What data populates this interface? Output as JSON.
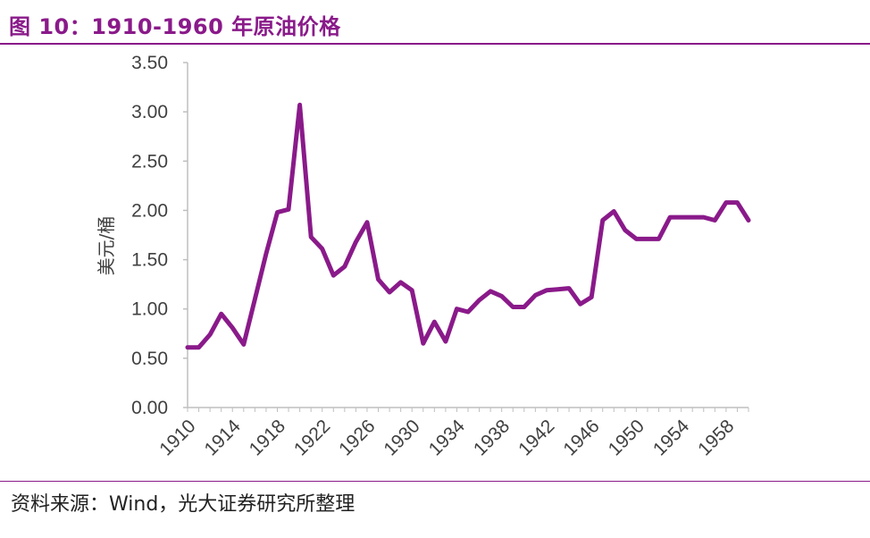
{
  "title": "图 10：1910-1960 年原油价格",
  "source": "资料来源：Wind，光大证券研究所整理",
  "colors": {
    "accent": "#8a1a8a",
    "axis": "#bfbfbf",
    "text": "#404040"
  },
  "chart_data": {
    "type": "line",
    "title": "",
    "xlabel": "",
    "ylabel": "美元/桶",
    "ylim": [
      0,
      3.5
    ],
    "xlim": [
      1910,
      1960
    ],
    "yticks": [
      "0.00",
      "0.50",
      "1.00",
      "1.50",
      "2.00",
      "2.50",
      "3.00",
      "3.50"
    ],
    "xticks": [
      "1910",
      "1914",
      "1918",
      "1922",
      "1926",
      "1930",
      "1934",
      "1938",
      "1942",
      "1946",
      "1950",
      "1954",
      "1958"
    ],
    "grid": false,
    "legend": "none",
    "series": [
      {
        "color": "#8a1a8a",
        "x": [
          1910,
          1911,
          1912,
          1913,
          1914,
          1915,
          1916,
          1917,
          1918,
          1919,
          1920,
          1921,
          1922,
          1923,
          1924,
          1925,
          1926,
          1927,
          1928,
          1929,
          1930,
          1931,
          1932,
          1933,
          1934,
          1935,
          1936,
          1937,
          1938,
          1939,
          1940,
          1941,
          1942,
          1943,
          1944,
          1945,
          1946,
          1947,
          1948,
          1949,
          1950,
          1951,
          1952,
          1953,
          1954,
          1955,
          1956,
          1957,
          1958,
          1959,
          1960
        ],
        "values": [
          0.61,
          0.61,
          0.74,
          0.95,
          0.81,
          0.64,
          1.1,
          1.56,
          1.98,
          2.01,
          3.07,
          1.73,
          1.61,
          1.34,
          1.43,
          1.68,
          1.88,
          1.3,
          1.17,
          1.27,
          1.19,
          0.65,
          0.87,
          0.67,
          1.0,
          0.97,
          1.09,
          1.18,
          1.13,
          1.02,
          1.02,
          1.14,
          1.19,
          1.2,
          1.21,
          1.05,
          1.12,
          1.9,
          1.99,
          1.8,
          1.71,
          1.71,
          1.71,
          1.93,
          1.93,
          1.93,
          1.93,
          1.9,
          2.08,
          2.08,
          1.9
        ]
      }
    ]
  }
}
